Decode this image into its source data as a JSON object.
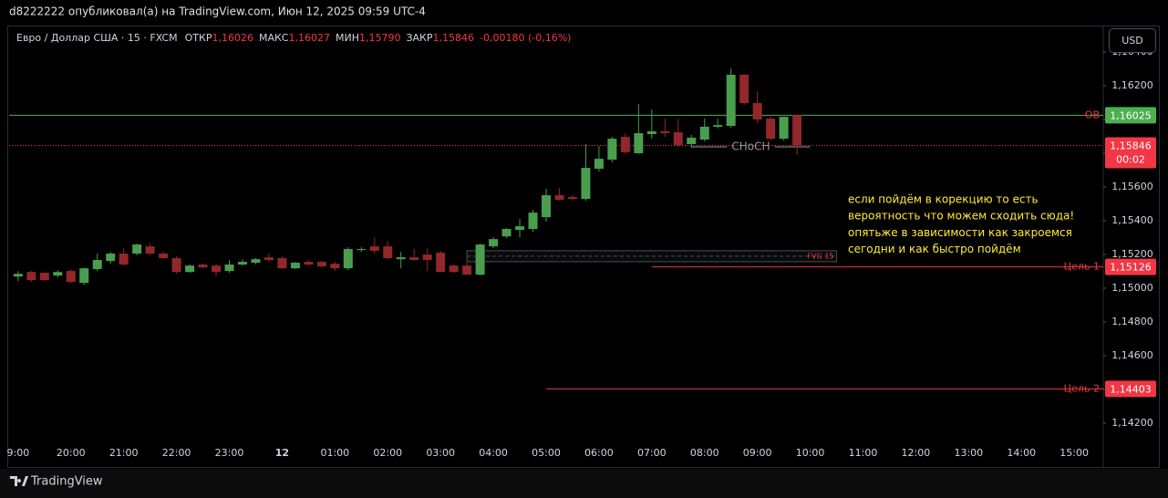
{
  "page_header": "d8222222 опубликовал(а) на TradingView.com, Июн 12, 2025 09:59 UTC-4",
  "footer_brand": "TradingView",
  "chart_data": {
    "type": "candlestick",
    "title": "Евро / Доллар США · 15 · FXCM",
    "ohlc_header": [
      {
        "name": "ОТКР",
        "value": 1.16026,
        "label": "1,16026"
      },
      {
        "name": "МАКС",
        "value": 1.16027,
        "label": "1,16027"
      },
      {
        "name": "МИН",
        "value": 1.1579,
        "label": "1,15790"
      },
      {
        "name": "ЗАКР",
        "value": 1.15846,
        "label": "1,15846"
      }
    ],
    "change": "-0,00180 (-0,16%)",
    "currency": "USD",
    "countdown": "00:02",
    "up_color": "#4a9e4e",
    "down_color": "#92282b",
    "x": [
      0,
      0.25,
      0.5,
      0.75,
      1,
      1.25,
      1.5,
      1.75,
      2,
      2.25,
      2.5,
      2.75,
      3,
      3.25,
      3.5,
      3.75,
      4,
      4.25,
      4.5,
      4.75,
      5,
      5.25,
      5.5,
      5.75,
      6,
      6.25,
      6.5,
      6.75,
      7,
      7.25,
      7.5,
      7.75,
      8,
      8.25,
      8.5,
      8.75,
      9,
      9.25,
      9.5,
      9.75,
      10,
      10.25,
      10.5,
      10.75,
      11,
      11.25,
      11.5,
      11.75,
      12,
      12.25,
      12.5,
      12.75,
      13,
      13.25,
      13.5,
      13.75,
      14,
      14.25,
      14.5,
      14.75
    ],
    "open": [
      1.15069,
      1.15096,
      1.15091,
      1.15075,
      1.15102,
      1.15031,
      1.15113,
      1.15161,
      1.15205,
      1.15205,
      1.15248,
      1.15205,
      1.15178,
      1.15096,
      1.1514,
      1.15134,
      1.15102,
      1.1514,
      1.15151,
      1.15183,
      1.15178,
      1.15118,
      1.15156,
      1.15156,
      1.15145,
      1.15118,
      1.15226,
      1.15248,
      1.15248,
      1.15172,
      1.15183,
      1.15199,
      1.1521,
      1.15134,
      1.15134,
      1.1508,
      1.15248,
      1.15307,
      1.15345,
      1.15351,
      1.15421,
      1.15551,
      1.1554,
      1.15529,
      1.15708,
      1.15762,
      1.15897,
      1.158,
      1.15913,
      1.1593,
      1.15924,
      1.15854,
      1.15881,
      1.15957,
      1.15962,
      1.16265,
      1.16097,
      1.16005,
      1.15886,
      1.16026
    ],
    "high": [
      1.15101,
      1.15102,
      1.15096,
      1.15107,
      1.15113,
      1.15123,
      1.15205,
      1.15215,
      1.15237,
      1.15264,
      1.15269,
      1.15215,
      1.15188,
      1.1514,
      1.15145,
      1.15145,
      1.15167,
      1.15172,
      1.15178,
      1.15205,
      1.15188,
      1.15156,
      1.15167,
      1.15161,
      1.15156,
      1.15242,
      1.15242,
      1.15302,
      1.1528,
      1.15215,
      1.15232,
      1.15237,
      1.15221,
      1.1514,
      1.15151,
      1.15264,
      1.15302,
      1.15356,
      1.1541,
      1.15464,
      1.15589,
      1.15594,
      1.15551,
      1.15853,
      1.15843,
      1.15897,
      1.15919,
      1.16092,
      1.16059,
      1.16005,
      1.16005,
      1.15908,
      1.16005,
      1.16005,
      1.16303,
      1.1627,
      1.16168,
      1.16016,
      1.16016,
      1.16027
    ],
    "low": [
      1.15042,
      1.15037,
      1.15042,
      1.15064,
      1.15031,
      1.15021,
      1.15102,
      1.15145,
      1.15134,
      1.15194,
      1.15194,
      1.15172,
      1.15086,
      1.15091,
      1.15118,
      1.15069,
      1.15091,
      1.15134,
      1.1514,
      1.15156,
      1.15113,
      1.15113,
      1.15134,
      1.15123,
      1.15102,
      1.15107,
      1.15215,
      1.15205,
      1.15172,
      1.15118,
      1.15161,
      1.15102,
      1.15096,
      1.15091,
      1.1508,
      1.15075,
      1.15237,
      1.15296,
      1.15302,
      1.15334,
      1.15394,
      1.15518,
      1.15518,
      1.15518,
      1.15691,
      1.15746,
      1.15795,
      1.15795,
      1.15886,
      1.15897,
      1.15838,
      1.15832,
      1.1587,
      1.15946,
      1.15951,
      1.16086,
      1.15978,
      1.15875,
      1.15875,
      1.1579
    ],
    "close": [
      1.15085,
      1.15048,
      1.15048,
      1.15096,
      1.15037,
      1.15118,
      1.15167,
      1.15205,
      1.1514,
      1.15259,
      1.15205,
      1.15178,
      1.15096,
      1.15134,
      1.15123,
      1.15096,
      1.1514,
      1.15156,
      1.15172,
      1.15167,
      1.15118,
      1.15151,
      1.1514,
      1.15129,
      1.15118,
      1.15232,
      1.15232,
      1.15221,
      1.15178,
      1.15183,
      1.15167,
      1.15167,
      1.15096,
      1.15096,
      1.1508,
      1.15259,
      1.15291,
      1.15351,
      1.15367,
      1.15448,
      1.15551,
      1.15524,
      1.15529,
      1.15713,
      1.15767,
      1.15886,
      1.15806,
      1.15919,
      1.1593,
      1.15919,
      1.15849,
      1.15892,
      1.15957,
      1.15967,
      1.16265,
      1.16097,
      1.16,
      1.15886,
      1.16016,
      1.15846
    ],
    "xlim": [
      -0.17,
      20.55
    ],
    "xticks": [
      {
        "value": 0,
        "label": "9:00"
      },
      {
        "value": 1,
        "label": "20:00"
      },
      {
        "value": 2,
        "label": "21:00"
      },
      {
        "value": 3,
        "label": "22:00"
      },
      {
        "value": 4,
        "label": "23:00"
      },
      {
        "value": 5,
        "label": "12"
      },
      {
        "value": 6,
        "label": "01:00"
      },
      {
        "value": 7,
        "label": "02:00"
      },
      {
        "value": 8,
        "label": "03:00"
      },
      {
        "value": 9,
        "label": "04:00"
      },
      {
        "value": 10,
        "label": "05:00"
      },
      {
        "value": 11,
        "label": "06:00"
      },
      {
        "value": 12,
        "label": "07:00"
      },
      {
        "value": 13,
        "label": "08:00"
      },
      {
        "value": 14,
        "label": "09:00"
      },
      {
        "value": 15,
        "label": "10:00"
      },
      {
        "value": 16,
        "label": "11:00"
      },
      {
        "value": 17,
        "label": "12:00"
      },
      {
        "value": 18,
        "label": "13:00"
      },
      {
        "value": 19,
        "label": "14:00"
      },
      {
        "value": 20,
        "label": "15:00"
      }
    ],
    "ylim": [
      1.14059,
      1.16546
    ],
    "yticks": [
      {
        "value": 1.142,
        "label": "1,14200"
      },
      {
        "value": 1.144,
        "label": "1,14400"
      },
      {
        "value": 1.146,
        "label": "1,14600"
      },
      {
        "value": 1.148,
        "label": "1,14800"
      },
      {
        "value": 1.15,
        "label": "1,15000"
      },
      {
        "value": 1.152,
        "label": "1,15200"
      },
      {
        "value": 1.154,
        "label": "1,15400"
      },
      {
        "value": 1.156,
        "label": "1,15600"
      },
      {
        "value": 1.158,
        "label": "1,15800"
      },
      {
        "value": 1.16,
        "label": "1,16000"
      },
      {
        "value": 1.162,
        "label": "1,16200"
      },
      {
        "value": 1.164,
        "label": "1,16400"
      }
    ],
    "levels": [
      {
        "name": "-OB",
        "value": 1.16025,
        "value_label": "1,16025",
        "color": "#4caf50"
      },
      {
        "value": 1.15846,
        "value_label": "1,15846",
        "color": "#f23645",
        "style": "dotted"
      },
      {
        "name": "Цель 1",
        "value": 1.15126,
        "value_label": "1,15126",
        "color": "#f23645",
        "x_start": 12
      },
      {
        "name": "Цель 2",
        "value": 1.14403,
        "value_label": "1,14403",
        "color": "#f23645",
        "x_start": 10
      }
    ],
    "fvg": {
      "name": "FVG 15",
      "top": 1.15222,
      "bottom": 1.15157,
      "x_start": 8.5,
      "x_end": 15.5
    },
    "choch": {
      "name": "CHoCH",
      "value": 1.15838,
      "x_start": 12.75,
      "x_end": 15
    },
    "annotation": [
      "если пойдём в корекцию то есть",
      "вероятность что можем сходить сюда!",
      "опятьже в зависимости как закроемся",
      "сегодни и как быстро пойдём"
    ]
  }
}
